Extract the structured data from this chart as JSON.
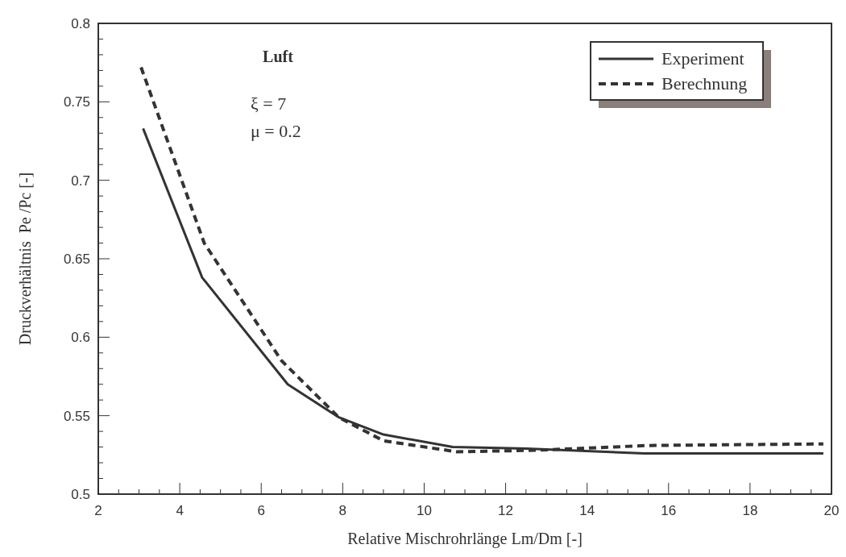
{
  "chart_data": {
    "type": "line",
    "xlabel": "Relative Mischrohrlänge Lm/Dm [-]",
    "ylabel": "Druckverhältnis  Pe /Pc [-]",
    "annotations": [
      "Luft",
      "ξ = 7",
      "μ = 0.2"
    ],
    "xlim": [
      2,
      20
    ],
    "ylim": [
      0.5,
      0.8
    ],
    "xticks": [
      2,
      {
        "value": 2.5,
        "label": null
      },
      {
        "value": 3,
        "label": null
      },
      {
        "value": 3.5,
        "label": null
      },
      4,
      {
        "value": 4.5,
        "label": null
      },
      {
        "value": 5,
        "label": null
      },
      {
        "value": 5.5,
        "label": null
      },
      6,
      {
        "value": 6.5,
        "label": null
      },
      {
        "value": 7,
        "label": null
      },
      {
        "value": 7.5,
        "label": null
      },
      8,
      {
        "value": 8.5,
        "label": null
      },
      {
        "value": 9,
        "label": null
      },
      {
        "value": 9.5,
        "label": null
      },
      10,
      {
        "value": 10.5,
        "label": null
      },
      {
        "value": 11,
        "label": null
      },
      {
        "value": 11.5,
        "label": null
      },
      12,
      {
        "value": 12.5,
        "label": null
      },
      {
        "value": 13,
        "label": null
      },
      {
        "value": 13.5,
        "label": null
      },
      14,
      {
        "value": 14.5,
        "label": null
      },
      {
        "value": 15,
        "label": null
      },
      {
        "value": 15.5,
        "label": null
      },
      16,
      {
        "value": 16.5,
        "label": null
      },
      {
        "value": 17,
        "label": null
      },
      {
        "value": 17.5,
        "label": null
      },
      18,
      {
        "value": 18.5,
        "label": null
      },
      {
        "value": 19,
        "label": null
      },
      {
        "value": 19.5,
        "label": null
      },
      20
    ],
    "yticks": [
      0.5,
      {
        "value": 0.51,
        "label": null
      },
      {
        "value": 0.52,
        "label": null
      },
      {
        "value": 0.53,
        "label": null
      },
      {
        "value": 0.54,
        "label": null
      },
      0.55,
      {
        "value": 0.56,
        "label": null
      },
      {
        "value": 0.57,
        "label": null
      },
      {
        "value": 0.58,
        "label": null
      },
      {
        "value": 0.59,
        "label": null
      },
      0.6,
      {
        "value": 0.61,
        "label": null
      },
      {
        "value": 0.62,
        "label": null
      },
      {
        "value": 0.63,
        "label": null
      },
      {
        "value": 0.64,
        "label": null
      },
      0.65,
      {
        "value": 0.66,
        "label": null
      },
      {
        "value": 0.67,
        "label": null
      },
      {
        "value": 0.68,
        "label": null
      },
      {
        "value": 0.69,
        "label": null
      },
      0.7,
      {
        "value": 0.71,
        "label": null
      },
      {
        "value": 0.72,
        "label": null
      },
      {
        "value": 0.73,
        "label": null
      },
      {
        "value": 0.74,
        "label": null
      },
      0.75,
      {
        "value": 0.76,
        "label": null
      },
      {
        "value": 0.77,
        "label": null
      },
      {
        "value": 0.78,
        "label": null
      },
      {
        "value": 0.79,
        "label": null
      },
      0.8
    ],
    "grid": false,
    "legend": "top right",
    "series": [
      {
        "name": "Experiment",
        "color": "#333333",
        "line_style": "solid",
        "x": [
          3.1,
          4.55,
          6.65,
          7.9,
          9.0,
          10.7,
          12.5,
          15.4,
          19.8
        ],
        "values": [
          0.733,
          0.638,
          0.57,
          0.549,
          0.538,
          0.53,
          0.529,
          0.526,
          0.526
        ]
      },
      {
        "name": "Berechnung",
        "color": "#333333",
        "line_style": "dashed",
        "x": [
          3.05,
          4.6,
          6.5,
          7.9,
          9.0,
          10.8,
          12.8,
          15.5,
          19.8
        ],
        "values": [
          0.772,
          0.66,
          0.585,
          0.549,
          0.534,
          0.527,
          0.528,
          0.531,
          0.532
        ]
      }
    ]
  }
}
